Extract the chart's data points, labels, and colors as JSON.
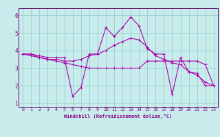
{
  "xlabel": "Windchill (Refroidissement éolien,°C)",
  "bg_color": "#c8ecec",
  "line_color": "#aa00aa",
  "grid_color": "#99cccc",
  "axis_color": "#880088",
  "spine_color": "#660066",
  "xlim": [
    -0.5,
    23.5
  ],
  "ylim": [
    0.8,
    6.4
  ],
  "xticks": [
    0,
    1,
    2,
    3,
    4,
    5,
    6,
    7,
    8,
    9,
    10,
    11,
    12,
    13,
    14,
    15,
    16,
    17,
    18,
    19,
    20,
    21,
    22,
    23
  ],
  "yticks": [
    1,
    2,
    3,
    4,
    5,
    6
  ],
  "series1": {
    "x": [
      0,
      1,
      2,
      3,
      4,
      5,
      6,
      7,
      8,
      9,
      10,
      11,
      12,
      13,
      14,
      15,
      16,
      17,
      18,
      19,
      20,
      21,
      22,
      23
    ],
    "y": [
      3.8,
      3.8,
      3.7,
      3.6,
      3.6,
      3.6,
      1.4,
      1.9,
      3.8,
      3.8,
      5.3,
      4.8,
      5.3,
      5.9,
      5.4,
      4.1,
      3.8,
      3.8,
      1.5,
      3.6,
      2.8,
      2.7,
      2.0,
      2.0
    ]
  },
  "series2": {
    "x": [
      0,
      1,
      2,
      3,
      4,
      5,
      6,
      7,
      8,
      9,
      10,
      11,
      12,
      13,
      14,
      15,
      16,
      17,
      18,
      19,
      20,
      21,
      22,
      23
    ],
    "y": [
      3.8,
      3.8,
      3.6,
      3.5,
      3.5,
      3.4,
      3.4,
      3.5,
      3.7,
      3.8,
      4.0,
      4.3,
      4.5,
      4.7,
      4.6,
      4.2,
      3.7,
      3.5,
      3.3,
      3.2,
      2.8,
      2.6,
      2.2,
      2.0
    ]
  },
  "series3": {
    "x": [
      0,
      1,
      2,
      3,
      4,
      5,
      6,
      7,
      8,
      9,
      10,
      11,
      12,
      13,
      14,
      15,
      16,
      17,
      18,
      19,
      20,
      21,
      22,
      23
    ],
    "y": [
      3.8,
      3.7,
      3.6,
      3.5,
      3.4,
      3.3,
      3.2,
      3.1,
      3.0,
      3.0,
      3.0,
      3.0,
      3.0,
      3.0,
      3.0,
      3.4,
      3.4,
      3.4,
      3.4,
      3.4,
      3.4,
      3.4,
      3.2,
      2.0
    ]
  },
  "xlabel_fontsize": 5.0,
  "tick_fontsize": 4.8,
  "ytick_fontsize": 5.5
}
